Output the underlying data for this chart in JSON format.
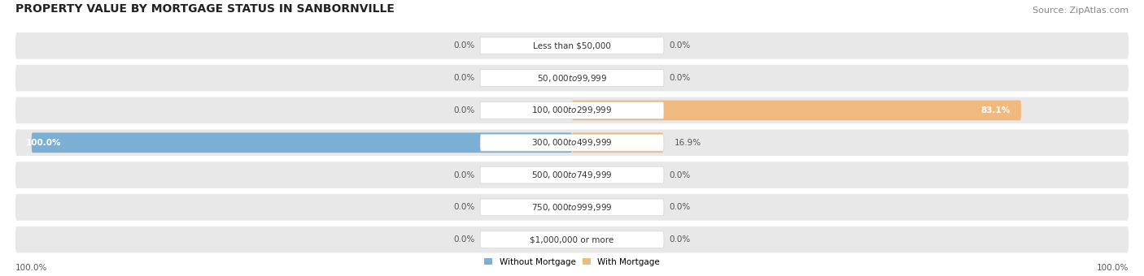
{
  "title": "PROPERTY VALUE BY MORTGAGE STATUS IN SANBORNVILLE",
  "source": "Source: ZipAtlas.com",
  "categories": [
    "Less than $50,000",
    "$50,000 to $99,999",
    "$100,000 to $299,999",
    "$300,000 to $499,999",
    "$500,000 to $749,999",
    "$750,000 to $999,999",
    "$1,000,000 or more"
  ],
  "without_mortgage": [
    0.0,
    0.0,
    0.0,
    100.0,
    0.0,
    0.0,
    0.0
  ],
  "with_mortgage": [
    0.0,
    0.0,
    83.1,
    16.9,
    0.0,
    0.0,
    0.0
  ],
  "without_mortgage_color": "#7bafd4",
  "with_mortgage_color": "#f0b97d",
  "row_bg_color": "#e8e8e8",
  "axis_label_left": "100.0%",
  "axis_label_right": "100.0%",
  "legend_without": "Without Mortgage",
  "legend_with": "With Mortgage",
  "title_fontsize": 10,
  "source_fontsize": 8,
  "label_fontsize": 7.5,
  "category_fontsize": 7.5
}
